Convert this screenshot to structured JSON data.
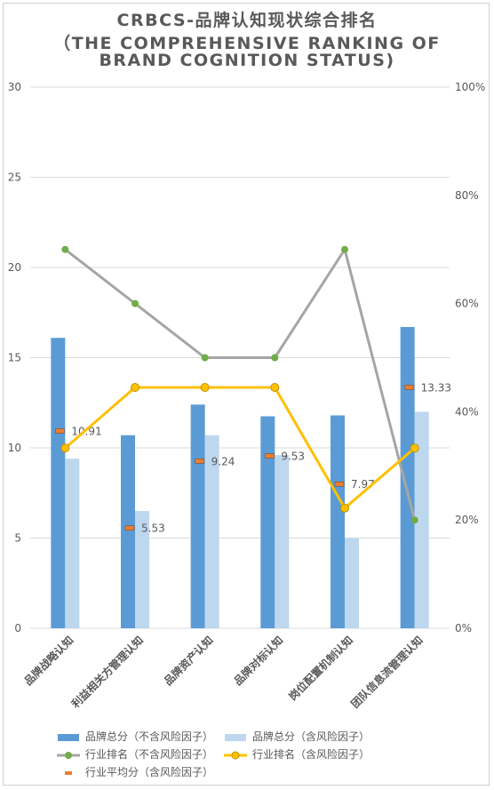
{
  "title_lines": [
    "CRBCS-品牌认知现状综合排名",
    "（THE COMPREHENSIVE RANKING OF",
    "BRAND COGNITION STATUS)"
  ],
  "chart_data": {
    "type": "bar",
    "title": "CRBCS-品牌认知现状综合排名（THE COMPREHENSIVE RANKING OF BRAND COGNITION STATUS)",
    "categories": [
      "品牌战略认知",
      "利益相关方管理认知",
      "品牌资产认知",
      "品牌对标认知",
      "岗位配置机制认知",
      "团队信息流管理认知"
    ],
    "y_left": {
      "ticks": [
        "0",
        "5",
        "10",
        "15",
        "20",
        "25",
        "30"
      ],
      "lim": [
        0,
        30
      ]
    },
    "y_right": {
      "ticks": [
        "0%",
        "20%",
        "40%",
        "60%",
        "80%",
        "100%"
      ],
      "lim": [
        0,
        100
      ]
    },
    "grid": true,
    "legend_position": "bottom",
    "series": [
      {
        "name": "品牌总分（不含风险因子）",
        "type": "bar",
        "axis": "left",
        "color": "#5b9bd5",
        "values": [
          16.1,
          10.7,
          12.4,
          11.75,
          11.8,
          16.7
        ]
      },
      {
        "name": "品牌总分（含风险因子）",
        "type": "bar",
        "axis": "left",
        "color": "#bdd7ee",
        "values": [
          9.4,
          6.5,
          10.7,
          9.6,
          5.0,
          12.0
        ]
      },
      {
        "name": "行业排名（不含风险因子）",
        "type": "line",
        "axis": "right",
        "color": "#a5a5a5",
        "values": [
          70,
          60,
          50,
          50,
          70,
          20
        ]
      },
      {
        "name": "行业排名（含风险因子）",
        "type": "line",
        "axis": "right",
        "color": "#ffc000",
        "values": [
          33.3,
          44.5,
          44.5,
          44.5,
          22.2,
          33.3
        ]
      },
      {
        "name": "行业平均分（含风险因子）",
        "type": "marker",
        "axis": "left",
        "color": "#ed7d31",
        "values": [
          10.91,
          5.53,
          9.24,
          9.53,
          7.97,
          13.33
        ],
        "labels": [
          "10.91",
          "5.53",
          "9.24",
          "9.53",
          "7.97",
          "13.33"
        ]
      }
    ]
  },
  "colors": {
    "text": "#595959",
    "grid": "#d9d9d9"
  }
}
